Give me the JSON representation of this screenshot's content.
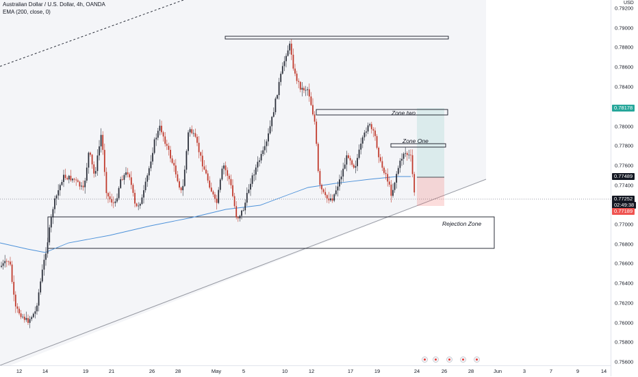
{
  "legend": {
    "symbol": "Australian Dollar / U.S. Dollar, 4h, OANDA",
    "indicator": "EMA (200, close, 0)"
  },
  "axis": {
    "unit": "USD",
    "price_ticks": [
      "0.79200",
      "0.79000",
      "0.78800",
      "0.78600",
      "0.78400",
      "0.78000",
      "0.77800",
      "0.77600",
      "0.77400",
      "0.77000",
      "0.76800",
      "0.76600",
      "0.76400",
      "0.76200",
      "0.76000",
      "0.75800",
      "0.75600"
    ],
    "time_ticks": [
      "12",
      "14",
      "19",
      "21",
      "26",
      "28",
      "May",
      "5",
      "10",
      "12",
      "17",
      "19",
      "24",
      "26",
      "28",
      "Jun",
      "3",
      "7",
      "9",
      "14"
    ]
  },
  "price_labels": {
    "target": {
      "text": "0.78178",
      "color": "#26a69a"
    },
    "entry": {
      "text": "0.77489",
      "color": "#131722"
    },
    "last": {
      "text": "0.77252",
      "color": "#131722"
    },
    "countdown": {
      "text": "02:49:38",
      "color": "#131722"
    },
    "stop": {
      "text": "0.77189",
      "color": "#ef5350"
    }
  },
  "annotations": {
    "zone_two": "Zone two",
    "zone_one": "Zone One",
    "rejection": "Rejection Zone"
  },
  "colors": {
    "up": "#26a69a",
    "down": "#ef5350",
    "candle_dark": "#2a2e39",
    "candle_red": "#c0392b",
    "ema": "#4a90d9"
  },
  "events": [
    "event-flag",
    "event-flag",
    "event-flag",
    "event-flag",
    "event-flag"
  ]
}
